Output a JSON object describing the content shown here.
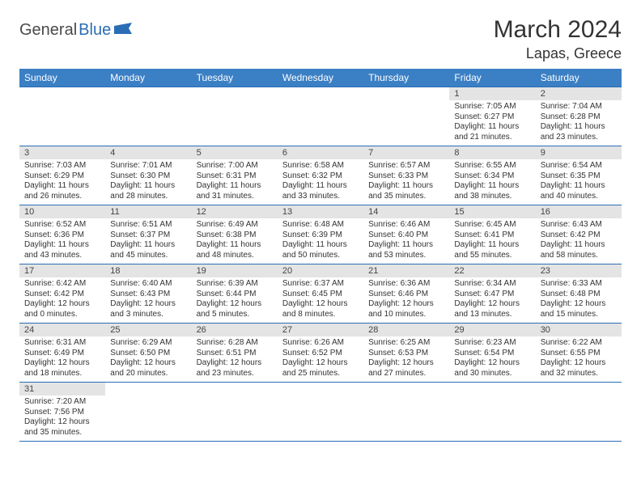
{
  "logo": {
    "part1": "General",
    "part2": "Blue",
    "flag_color": "#2a6db5"
  },
  "title": "March 2024",
  "location": "Lapas, Greece",
  "colors": {
    "header_bg": "#3b7fc4",
    "header_text": "#ffffff",
    "daynum_bg": "#e4e4e4",
    "border": "#2a6db5",
    "text": "#333333"
  },
  "weekdays": [
    "Sunday",
    "Monday",
    "Tuesday",
    "Wednesday",
    "Thursday",
    "Friday",
    "Saturday"
  ],
  "weeks": [
    [
      null,
      null,
      null,
      null,
      null,
      {
        "n": "1",
        "sunrise": "Sunrise: 7:05 AM",
        "sunset": "Sunset: 6:27 PM",
        "daylight": "Daylight: 11 hours and 21 minutes."
      },
      {
        "n": "2",
        "sunrise": "Sunrise: 7:04 AM",
        "sunset": "Sunset: 6:28 PM",
        "daylight": "Daylight: 11 hours and 23 minutes."
      }
    ],
    [
      {
        "n": "3",
        "sunrise": "Sunrise: 7:03 AM",
        "sunset": "Sunset: 6:29 PM",
        "daylight": "Daylight: 11 hours and 26 minutes."
      },
      {
        "n": "4",
        "sunrise": "Sunrise: 7:01 AM",
        "sunset": "Sunset: 6:30 PM",
        "daylight": "Daylight: 11 hours and 28 minutes."
      },
      {
        "n": "5",
        "sunrise": "Sunrise: 7:00 AM",
        "sunset": "Sunset: 6:31 PM",
        "daylight": "Daylight: 11 hours and 31 minutes."
      },
      {
        "n": "6",
        "sunrise": "Sunrise: 6:58 AM",
        "sunset": "Sunset: 6:32 PM",
        "daylight": "Daylight: 11 hours and 33 minutes."
      },
      {
        "n": "7",
        "sunrise": "Sunrise: 6:57 AM",
        "sunset": "Sunset: 6:33 PM",
        "daylight": "Daylight: 11 hours and 35 minutes."
      },
      {
        "n": "8",
        "sunrise": "Sunrise: 6:55 AM",
        "sunset": "Sunset: 6:34 PM",
        "daylight": "Daylight: 11 hours and 38 minutes."
      },
      {
        "n": "9",
        "sunrise": "Sunrise: 6:54 AM",
        "sunset": "Sunset: 6:35 PM",
        "daylight": "Daylight: 11 hours and 40 minutes."
      }
    ],
    [
      {
        "n": "10",
        "sunrise": "Sunrise: 6:52 AM",
        "sunset": "Sunset: 6:36 PM",
        "daylight": "Daylight: 11 hours and 43 minutes."
      },
      {
        "n": "11",
        "sunrise": "Sunrise: 6:51 AM",
        "sunset": "Sunset: 6:37 PM",
        "daylight": "Daylight: 11 hours and 45 minutes."
      },
      {
        "n": "12",
        "sunrise": "Sunrise: 6:49 AM",
        "sunset": "Sunset: 6:38 PM",
        "daylight": "Daylight: 11 hours and 48 minutes."
      },
      {
        "n": "13",
        "sunrise": "Sunrise: 6:48 AM",
        "sunset": "Sunset: 6:39 PM",
        "daylight": "Daylight: 11 hours and 50 minutes."
      },
      {
        "n": "14",
        "sunrise": "Sunrise: 6:46 AM",
        "sunset": "Sunset: 6:40 PM",
        "daylight": "Daylight: 11 hours and 53 minutes."
      },
      {
        "n": "15",
        "sunrise": "Sunrise: 6:45 AM",
        "sunset": "Sunset: 6:41 PM",
        "daylight": "Daylight: 11 hours and 55 minutes."
      },
      {
        "n": "16",
        "sunrise": "Sunrise: 6:43 AM",
        "sunset": "Sunset: 6:42 PM",
        "daylight": "Daylight: 11 hours and 58 minutes."
      }
    ],
    [
      {
        "n": "17",
        "sunrise": "Sunrise: 6:42 AM",
        "sunset": "Sunset: 6:42 PM",
        "daylight": "Daylight: 12 hours and 0 minutes."
      },
      {
        "n": "18",
        "sunrise": "Sunrise: 6:40 AM",
        "sunset": "Sunset: 6:43 PM",
        "daylight": "Daylight: 12 hours and 3 minutes."
      },
      {
        "n": "19",
        "sunrise": "Sunrise: 6:39 AM",
        "sunset": "Sunset: 6:44 PM",
        "daylight": "Daylight: 12 hours and 5 minutes."
      },
      {
        "n": "20",
        "sunrise": "Sunrise: 6:37 AM",
        "sunset": "Sunset: 6:45 PM",
        "daylight": "Daylight: 12 hours and 8 minutes."
      },
      {
        "n": "21",
        "sunrise": "Sunrise: 6:36 AM",
        "sunset": "Sunset: 6:46 PM",
        "daylight": "Daylight: 12 hours and 10 minutes."
      },
      {
        "n": "22",
        "sunrise": "Sunrise: 6:34 AM",
        "sunset": "Sunset: 6:47 PM",
        "daylight": "Daylight: 12 hours and 13 minutes."
      },
      {
        "n": "23",
        "sunrise": "Sunrise: 6:33 AM",
        "sunset": "Sunset: 6:48 PM",
        "daylight": "Daylight: 12 hours and 15 minutes."
      }
    ],
    [
      {
        "n": "24",
        "sunrise": "Sunrise: 6:31 AM",
        "sunset": "Sunset: 6:49 PM",
        "daylight": "Daylight: 12 hours and 18 minutes."
      },
      {
        "n": "25",
        "sunrise": "Sunrise: 6:29 AM",
        "sunset": "Sunset: 6:50 PM",
        "daylight": "Daylight: 12 hours and 20 minutes."
      },
      {
        "n": "26",
        "sunrise": "Sunrise: 6:28 AM",
        "sunset": "Sunset: 6:51 PM",
        "daylight": "Daylight: 12 hours and 23 minutes."
      },
      {
        "n": "27",
        "sunrise": "Sunrise: 6:26 AM",
        "sunset": "Sunset: 6:52 PM",
        "daylight": "Daylight: 12 hours and 25 minutes."
      },
      {
        "n": "28",
        "sunrise": "Sunrise: 6:25 AM",
        "sunset": "Sunset: 6:53 PM",
        "daylight": "Daylight: 12 hours and 27 minutes."
      },
      {
        "n": "29",
        "sunrise": "Sunrise: 6:23 AM",
        "sunset": "Sunset: 6:54 PM",
        "daylight": "Daylight: 12 hours and 30 minutes."
      },
      {
        "n": "30",
        "sunrise": "Sunrise: 6:22 AM",
        "sunset": "Sunset: 6:55 PM",
        "daylight": "Daylight: 12 hours and 32 minutes."
      }
    ],
    [
      {
        "n": "31",
        "sunrise": "Sunrise: 7:20 AM",
        "sunset": "Sunset: 7:56 PM",
        "daylight": "Daylight: 12 hours and 35 minutes."
      },
      null,
      null,
      null,
      null,
      null,
      null
    ]
  ]
}
